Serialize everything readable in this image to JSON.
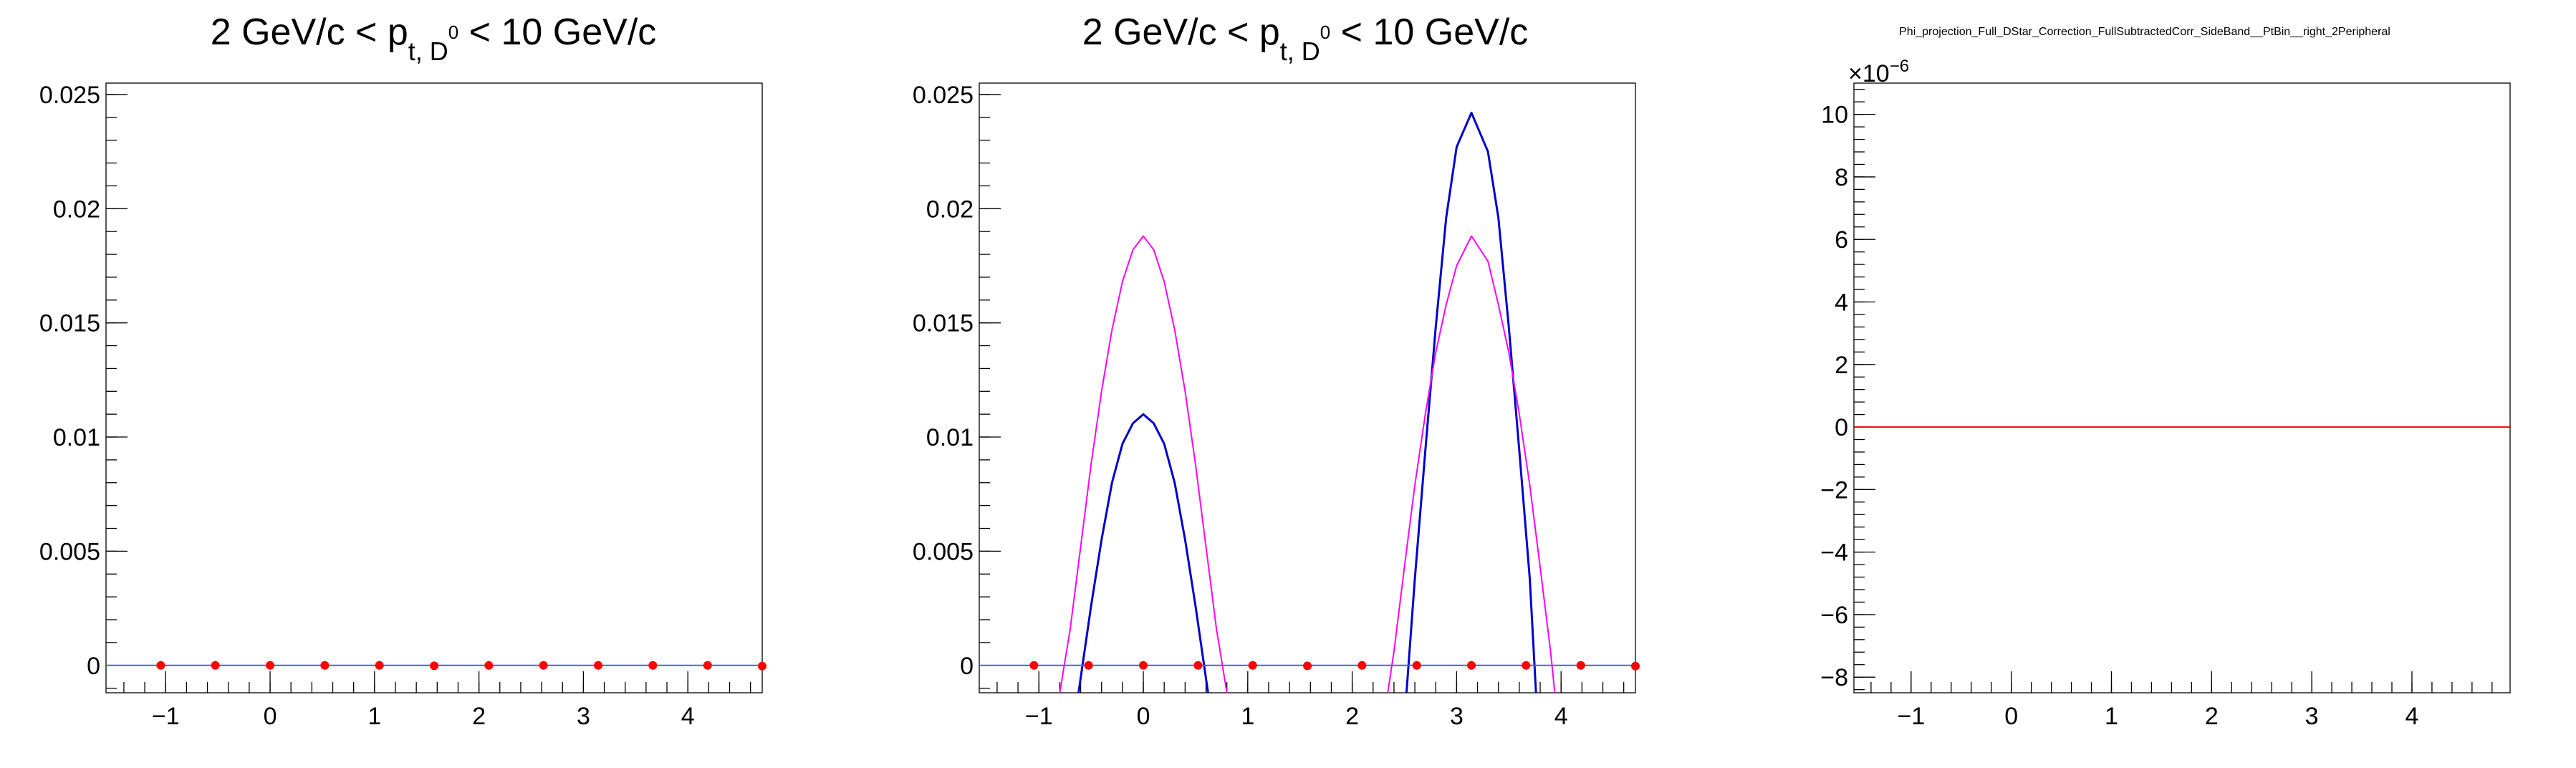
{
  "chart_data": [
    {
      "type": "line",
      "title": "2 GeV/c < p",
      "title_sub": "t, D",
      "title_sup": "0",
      "title_tail": " < 10 GeV/c",
      "xlim": [
        -1.571,
        4.712
      ],
      "ylim": [
        -0.0012,
        0.0255
      ],
      "x_ticks": [
        -1,
        0,
        1,
        2,
        3,
        4
      ],
      "y_ticks": [
        0,
        0.005,
        0.01,
        0.015,
        0.02,
        0.025
      ],
      "x_tick_labels": [
        "−1",
        "0",
        "1",
        "2",
        "3",
        "4"
      ],
      "y_tick_labels": [
        "0",
        "0.005",
        "0.01",
        "0.015",
        "0.02",
        "0.025"
      ],
      "series": [
        {
          "kind": "points",
          "color": "#ff0000",
          "x": [
            -1.047,
            -0.524,
            0.0,
            0.524,
            1.047,
            1.571,
            2.094,
            2.618,
            3.142,
            3.665,
            4.189,
            4.712
          ],
          "y": [
            0.0,
            0.0,
            0.0,
            0.0,
            0.0,
            -2e-05,
            0.0,
            0.0,
            0.0,
            0.0,
            0.0,
            -3e-05
          ]
        },
        {
          "kind": "line",
          "color": "#4a62d6",
          "x": [
            -1.571,
            4.712
          ],
          "y": [
            0.0,
            0.0
          ]
        }
      ]
    },
    {
      "type": "line",
      "title": "2 GeV/c < p",
      "title_sub": "t, D",
      "title_sup": "0",
      "title_tail": " < 10 GeV/c",
      "xlim": [
        -1.571,
        4.712
      ],
      "ylim": [
        -0.0012,
        0.0255
      ],
      "x_ticks": [
        -1,
        0,
        1,
        2,
        3,
        4
      ],
      "y_ticks": [
        0,
        0.005,
        0.01,
        0.015,
        0.02,
        0.025
      ],
      "x_tick_labels": [
        "−1",
        "0",
        "1",
        "2",
        "3",
        "4"
      ],
      "y_tick_labels": [
        "0",
        "0.005",
        "0.01",
        "0.015",
        "0.02",
        "0.025"
      ],
      "series": [
        {
          "kind": "points",
          "color": "#ff0000",
          "x": [
            -1.047,
            -0.524,
            0.0,
            0.524,
            1.047,
            1.571,
            2.094,
            2.618,
            3.142,
            3.665,
            4.189,
            4.712
          ],
          "y": [
            0.0,
            0.0,
            0.0,
            0.0,
            0.0,
            -2e-05,
            0.0,
            0.0,
            0.0,
            0.0,
            0.0,
            -3e-05
          ]
        },
        {
          "kind": "line",
          "color": "#4a62d6",
          "x": [
            -1.571,
            4.712
          ],
          "y": [
            0.0,
            0.0
          ]
        },
        {
          "kind": "curve",
          "color": "#0000cc",
          "width": 3,
          "x": [
            -0.62,
            -0.5,
            -0.4,
            -0.3,
            -0.2,
            -0.1,
            0.0,
            0.1,
            0.2,
            0.3,
            0.4,
            0.5,
            0.62,
            2.52,
            2.6,
            2.7,
            2.8,
            2.9,
            3.0,
            3.142,
            3.3,
            3.4,
            3.5,
            3.6,
            3.7,
            3.76
          ],
          "y": [
            -0.0012,
            0.0026,
            0.0055,
            0.008,
            0.0097,
            0.0106,
            0.011,
            0.0106,
            0.0097,
            0.008,
            0.0055,
            0.0026,
            -0.0012,
            -0.0012,
            0.0038,
            0.0094,
            0.0148,
            0.0196,
            0.0227,
            0.0242,
            0.0225,
            0.0196,
            0.0148,
            0.0094,
            0.0038,
            -0.0012
          ]
        },
        {
          "kind": "curve",
          "color": "#ff00ff",
          "width": 2,
          "x": [
            -0.8,
            -0.7,
            -0.6,
            -0.5,
            -0.4,
            -0.3,
            -0.2,
            -0.1,
            0.0,
            0.1,
            0.2,
            0.3,
            0.4,
            0.5,
            0.6,
            0.7,
            0.8,
            2.34,
            2.4,
            2.5,
            2.6,
            2.7,
            2.8,
            2.9,
            3.0,
            3.142,
            3.3,
            3.4,
            3.5,
            3.6,
            3.7,
            3.8,
            3.9,
            3.94
          ],
          "y": [
            -0.0012,
            0.0016,
            0.0052,
            0.0088,
            0.012,
            0.0147,
            0.0168,
            0.0182,
            0.0188,
            0.0182,
            0.0168,
            0.0147,
            0.012,
            0.0088,
            0.0052,
            0.0016,
            -0.0012,
            -0.0012,
            0.0006,
            0.0043,
            0.0079,
            0.011,
            0.0137,
            0.0158,
            0.0175,
            0.0188,
            0.0177,
            0.0158,
            0.0137,
            0.011,
            0.0079,
            0.0043,
            0.0006,
            -0.0012
          ]
        }
      ]
    },
    {
      "type": "line",
      "title": "Phi_projection_Full_DStar_Correction_FullSubtractedCorr_SideBand__PtBin__right_2Peripheral",
      "multiplier_label": "×10",
      "multiplier_exp": "−6",
      "xlim": [
        -1.571,
        4.98
      ],
      "ylim": [
        -8.5,
        11
      ],
      "x_ticks": [
        -1,
        0,
        1,
        2,
        3,
        4
      ],
      "y_ticks": [
        -8,
        -6,
        -4,
        -2,
        0,
        2,
        4,
        6,
        8,
        10
      ],
      "x_tick_labels": [
        "−1",
        "0",
        "1",
        "2",
        "3",
        "4"
      ],
      "y_tick_labels": [
        "−8",
        "−6",
        "−4",
        "−2",
        "0",
        "2",
        "4",
        "6",
        "8",
        "10"
      ],
      "series": [
        {
          "kind": "line",
          "color": "#ff0000",
          "x": [
            -1.571,
            4.98
          ],
          "y": [
            0.0,
            0.0
          ]
        }
      ]
    }
  ]
}
